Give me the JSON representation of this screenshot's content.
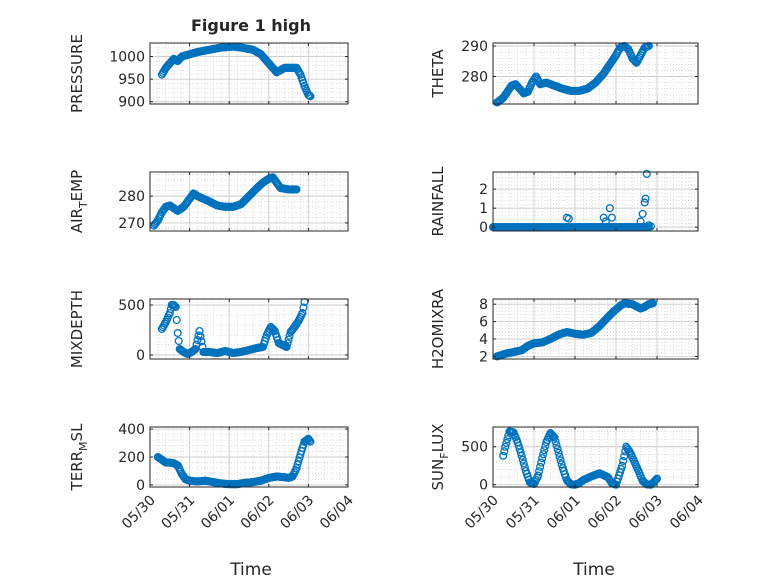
{
  "title": "Figure 1 high",
  "xlabel": "Time",
  "chart_data": [
    {
      "type": "scatter",
      "ylabel": "PRESSURE",
      "xlim": [
        0,
        5
      ],
      "ylim": [
        895,
        1030
      ],
      "yticks": [
        900,
        950,
        1000
      ],
      "xticks": [
        "05/30",
        "05/31",
        "06/01",
        "06/02",
        "06/03",
        "06/04"
      ],
      "show_xtick_labels": false,
      "grid": true,
      "anchors": [
        [
          0.3,
          960
        ],
        [
          0.4,
          975
        ],
        [
          0.5,
          985
        ],
        [
          0.6,
          995
        ],
        [
          0.7,
          990
        ],
        [
          0.8,
          1000
        ],
        [
          1.0,
          1005
        ],
        [
          1.2,
          1010
        ],
        [
          1.5,
          1015
        ],
        [
          1.8,
          1020
        ],
        [
          2.1,
          1022
        ],
        [
          2.3,
          1020
        ],
        [
          2.6,
          1015
        ],
        [
          2.8,
          1005
        ],
        [
          3.0,
          985
        ],
        [
          3.2,
          965
        ],
        [
          3.4,
          975
        ],
        [
          3.6,
          975
        ],
        [
          3.7,
          975
        ],
        [
          3.8,
          960
        ],
        [
          3.9,
          935
        ],
        [
          4.0,
          915
        ],
        [
          4.05,
          912
        ]
      ]
    },
    {
      "type": "scatter",
      "ylabel": "THETA",
      "xlim": [
        0,
        5
      ],
      "ylim": [
        271,
        291
      ],
      "yticks": [
        280,
        290
      ],
      "xticks": [
        "05/30",
        "05/31",
        "06/01",
        "06/02",
        "06/03",
        "06/04"
      ],
      "show_xtick_labels": false,
      "grid": true,
      "anchors": [
        [
          0.1,
          271.5
        ],
        [
          0.25,
          273
        ],
        [
          0.35,
          275
        ],
        [
          0.45,
          277
        ],
        [
          0.55,
          277.5
        ],
        [
          0.65,
          276
        ],
        [
          0.75,
          274.5
        ],
        [
          0.85,
          275
        ],
        [
          0.95,
          278
        ],
        [
          1.05,
          280
        ],
        [
          1.15,
          277.5
        ],
        [
          1.3,
          278
        ],
        [
          1.5,
          277
        ],
        [
          1.7,
          276
        ],
        [
          1.9,
          275.3
        ],
        [
          2.1,
          275.3
        ],
        [
          2.3,
          276
        ],
        [
          2.5,
          278
        ],
        [
          2.7,
          281
        ],
        [
          2.9,
          285
        ],
        [
          3.0,
          287
        ],
        [
          3.1,
          289.5
        ],
        [
          3.2,
          290
        ],
        [
          3.3,
          289
        ],
        [
          3.4,
          286
        ],
        [
          3.5,
          284.5
        ],
        [
          3.6,
          287
        ],
        [
          3.7,
          289.5
        ],
        [
          3.8,
          290
        ]
      ]
    },
    {
      "type": "scatter",
      "ylabel": "AIR_TEMP",
      "ylabel_parts": [
        "AIR",
        "T",
        "EMP"
      ],
      "xlim": [
        0,
        5
      ],
      "ylim": [
        267,
        289
      ],
      "yticks": [
        270,
        280
      ],
      "xticks": [
        "05/30",
        "05/31",
        "06/01",
        "06/02",
        "06/03",
        "06/04"
      ],
      "show_xtick_labels": false,
      "grid": true,
      "anchors": [
        [
          0.1,
          269
        ],
        [
          0.2,
          271
        ],
        [
          0.3,
          274
        ],
        [
          0.4,
          276
        ],
        [
          0.5,
          276.5
        ],
        [
          0.6,
          275.5
        ],
        [
          0.7,
          274.5
        ],
        [
          0.85,
          276
        ],
        [
          1.0,
          279
        ],
        [
          1.1,
          281
        ],
        [
          1.2,
          280
        ],
        [
          1.35,
          279
        ],
        [
          1.5,
          278
        ],
        [
          1.7,
          276.5
        ],
        [
          1.9,
          276
        ],
        [
          2.1,
          276
        ],
        [
          2.3,
          277
        ],
        [
          2.5,
          280
        ],
        [
          2.7,
          283
        ],
        [
          2.85,
          285
        ],
        [
          3.0,
          286.5
        ],
        [
          3.1,
          287
        ],
        [
          3.2,
          285
        ],
        [
          3.3,
          283
        ],
        [
          3.5,
          282.5
        ],
        [
          3.6,
          282.5
        ],
        [
          3.7,
          282.5
        ]
      ]
    },
    {
      "type": "scatter",
      "ylabel": "RAINFALL",
      "xlim": [
        0,
        5
      ],
      "ylim": [
        -0.2,
        2.9
      ],
      "yticks": [
        0,
        1,
        2
      ],
      "xticks": [
        "05/30",
        "05/31",
        "06/01",
        "06/02",
        "06/03",
        "06/04"
      ],
      "show_xtick_labels": false,
      "grid": true,
      "anchors": [
        [
          0.0,
          0
        ],
        [
          3.8,
          0
        ]
      ],
      "extra_points": [
        [
          1.8,
          0.5
        ],
        [
          1.85,
          0.45
        ],
        [
          2.7,
          0.5
        ],
        [
          2.75,
          0.3
        ],
        [
          2.85,
          1.0
        ],
        [
          2.9,
          0.5
        ],
        [
          3.6,
          0.3
        ],
        [
          3.65,
          0.7
        ],
        [
          3.7,
          1.3
        ],
        [
          3.72,
          1.5
        ],
        [
          3.75,
          2.8
        ],
        [
          3.8,
          0.1
        ],
        [
          3.85,
          0.05
        ]
      ]
    },
    {
      "type": "scatter",
      "ylabel": "MIXDEPTH",
      "xlim": [
        0,
        5
      ],
      "ylim": [
        -40,
        560
      ],
      "yticks": [
        0,
        500
      ],
      "xticks": [
        "05/30",
        "05/31",
        "06/01",
        "06/02",
        "06/03",
        "06/04"
      ],
      "show_xtick_labels": false,
      "grid": true,
      "anchors": [
        [
          0.3,
          260
        ],
        [
          0.4,
          330
        ],
        [
          0.5,
          420
        ],
        [
          0.55,
          500
        ],
        [
          0.6,
          500
        ],
        [
          0.65,
          480
        ],
        [
          0.7,
          220
        ],
        [
          0.75,
          60
        ],
        [
          0.85,
          30
        ],
        [
          0.95,
          10
        ],
        [
          1.05,
          30
        ],
        [
          1.15,
          60
        ],
        [
          1.25,
          240
        ],
        [
          1.35,
          30
        ],
        [
          1.5,
          30
        ],
        [
          1.7,
          20
        ],
        [
          1.9,
          40
        ],
        [
          2.1,
          20
        ],
        [
          2.3,
          30
        ],
        [
          2.5,
          50
        ],
        [
          2.7,
          70
        ],
        [
          2.85,
          80
        ],
        [
          2.95,
          200
        ],
        [
          3.05,
          280
        ],
        [
          3.15,
          240
        ],
        [
          3.25,
          120
        ],
        [
          3.35,
          100
        ],
        [
          3.45,
          80
        ],
        [
          3.55,
          230
        ],
        [
          3.65,
          280
        ],
        [
          3.75,
          340
        ],
        [
          3.85,
          420
        ],
        [
          3.9,
          530
        ]
      ]
    },
    {
      "type": "scatter",
      "ylabel": "H2OMIXRA",
      "xlim": [
        0,
        5
      ],
      "ylim": [
        1.7,
        8.6
      ],
      "yticks": [
        2,
        4,
        6,
        8
      ],
      "xticks": [
        "05/30",
        "05/31",
        "06/01",
        "06/02",
        "06/03",
        "06/04"
      ],
      "show_xtick_labels": false,
      "grid": true,
      "anchors": [
        [
          0.1,
          2
        ],
        [
          0.3,
          2.3
        ],
        [
          0.5,
          2.5
        ],
        [
          0.7,
          2.7
        ],
        [
          0.85,
          3.2
        ],
        [
          1.0,
          3.5
        ],
        [
          1.2,
          3.6
        ],
        [
          1.4,
          4.0
        ],
        [
          1.6,
          4.5
        ],
        [
          1.8,
          4.8
        ],
        [
          2.0,
          4.6
        ],
        [
          2.2,
          4.5
        ],
        [
          2.4,
          4.7
        ],
        [
          2.6,
          5.5
        ],
        [
          2.8,
          6.5
        ],
        [
          2.95,
          7.2
        ],
        [
          3.1,
          7.8
        ],
        [
          3.2,
          8.1
        ],
        [
          3.4,
          8.0
        ],
        [
          3.6,
          7.5
        ],
        [
          3.7,
          7.7
        ],
        [
          3.8,
          8.0
        ],
        [
          3.9,
          8.1
        ]
      ]
    },
    {
      "type": "scatter",
      "ylabel": "TERR_MSL",
      "ylabel_parts": [
        "TERR",
        "M",
        "SL"
      ],
      "xlim": [
        0,
        5
      ],
      "ylim": [
        -15,
        415
      ],
      "yticks": [
        0,
        200,
        400
      ],
      "xticks": [
        "05/30",
        "05/31",
        "06/01",
        "06/02",
        "06/03",
        "06/04"
      ],
      "show_xtick_labels": true,
      "grid": true,
      "anchors": [
        [
          0.2,
          200
        ],
        [
          0.3,
          180
        ],
        [
          0.4,
          160
        ],
        [
          0.5,
          160
        ],
        [
          0.6,
          155
        ],
        [
          0.7,
          140
        ],
        [
          0.8,
          80
        ],
        [
          0.9,
          40
        ],
        [
          1.0,
          30
        ],
        [
          1.2,
          25
        ],
        [
          1.4,
          30
        ],
        [
          1.6,
          20
        ],
        [
          1.8,
          10
        ],
        [
          2.0,
          5
        ],
        [
          2.2,
          5
        ],
        [
          2.4,
          15
        ],
        [
          2.6,
          20
        ],
        [
          2.8,
          30
        ],
        [
          3.0,
          50
        ],
        [
          3.2,
          60
        ],
        [
          3.4,
          55
        ],
        [
          3.5,
          50
        ],
        [
          3.6,
          60
        ],
        [
          3.7,
          120
        ],
        [
          3.8,
          220
        ],
        [
          3.9,
          310
        ],
        [
          4.0,
          330
        ],
        [
          4.05,
          310
        ]
      ]
    },
    {
      "type": "scatter",
      "ylabel": "SUN_FLUX",
      "ylabel_parts": [
        "SUN",
        "F",
        "LUX"
      ],
      "xlim": [
        0,
        5
      ],
      "ylim": [
        -30,
        760
      ],
      "yticks": [
        0,
        500
      ],
      "xticks": [
        "05/30",
        "05/31",
        "06/01",
        "06/02",
        "06/03",
        "06/04"
      ],
      "show_xtick_labels": true,
      "grid": true,
      "anchors": [
        [
          0.25,
          380
        ],
        [
          0.3,
          500
        ],
        [
          0.35,
          600
        ],
        [
          0.4,
          700
        ],
        [
          0.5,
          690
        ],
        [
          0.6,
          560
        ],
        [
          0.7,
          380
        ],
        [
          0.8,
          180
        ],
        [
          0.9,
          30
        ],
        [
          1.0,
          10
        ],
        [
          1.1,
          120
        ],
        [
          1.2,
          350
        ],
        [
          1.3,
          560
        ],
        [
          1.4,
          680
        ],
        [
          1.5,
          620
        ],
        [
          1.6,
          420
        ],
        [
          1.7,
          220
        ],
        [
          1.8,
          60
        ],
        [
          1.9,
          5
        ],
        [
          2.0,
          0
        ],
        [
          2.1,
          20
        ],
        [
          2.2,
          60
        ],
        [
          2.4,
          110
        ],
        [
          2.6,
          150
        ],
        [
          2.8,
          100
        ],
        [
          2.9,
          20
        ],
        [
          3.0,
          0
        ],
        [
          3.05,
          80
        ],
        [
          3.15,
          250
        ],
        [
          3.25,
          500
        ],
        [
          3.35,
          420
        ],
        [
          3.45,
          300
        ],
        [
          3.55,
          180
        ],
        [
          3.65,
          50
        ],
        [
          3.75,
          5
        ],
        [
          3.85,
          0
        ],
        [
          3.95,
          50
        ],
        [
          4.0,
          80
        ]
      ]
    }
  ]
}
